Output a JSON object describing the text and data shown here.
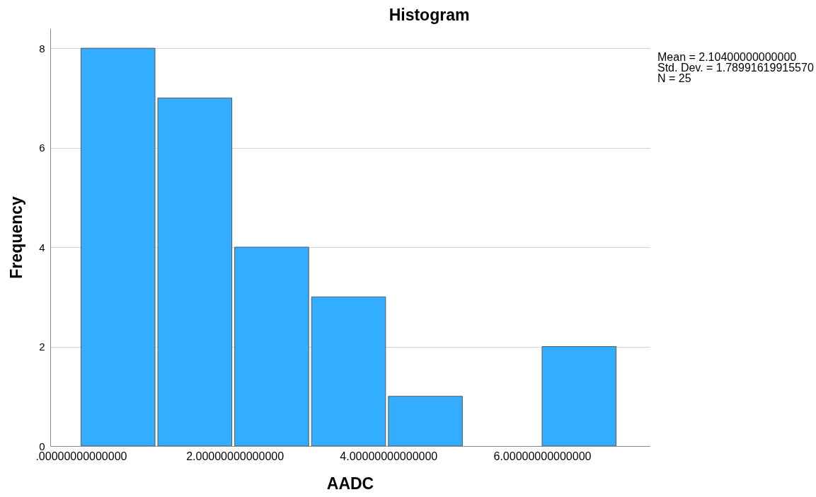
{
  "chart_data": {
    "type": "histogram",
    "title": "Histogram",
    "xlabel": "AADC",
    "ylabel": "Frequency",
    "bins": [
      0,
      1,
      2,
      3,
      4,
      5,
      6,
      7
    ],
    "values": [
      8,
      7,
      4,
      3,
      1,
      0,
      2
    ],
    "color": "#33adff",
    "xlim": [
      -0.4,
      7.4
    ],
    "xticks": [
      {
        "value": 0,
        "label": ".00000000000000"
      },
      {
        "value": 2,
        "label": "2.00000000000000"
      },
      {
        "value": 4,
        "label": "4.00000000000000"
      },
      {
        "value": 6,
        "label": "6.00000000000000"
      }
    ],
    "ylim": [
      0,
      8.4
    ],
    "yticks": [
      0,
      2,
      4,
      6,
      8
    ],
    "grid": "y",
    "annotations": [
      "Mean = 2.10400000000000",
      "Std. Dev. = 1.78991619915570",
      "N = 25"
    ]
  }
}
